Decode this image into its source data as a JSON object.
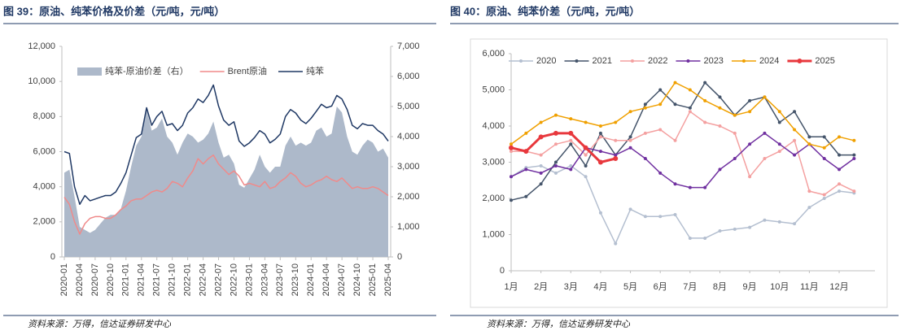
{
  "chart_data": [
    {
      "type": "combo",
      "title": "图 39：原油、纯苯价格及价差（元/吨，元/吨）",
      "categories": [
        "2020-01",
        null,
        null,
        "2020-04",
        null,
        null,
        "2020-07",
        null,
        null,
        "2020-10",
        null,
        null,
        "2021-01",
        null,
        null,
        "2021-04",
        null,
        null,
        "2021-07",
        null,
        null,
        "2021-10",
        null,
        null,
        "2022-01",
        null,
        null,
        "2022-04",
        null,
        null,
        "2022-07",
        null,
        null,
        "2022-10",
        null,
        null,
        "2023-01",
        null,
        null,
        "2023-04",
        null,
        null,
        "2023-07",
        null,
        null,
        "2023-10",
        null,
        null,
        "2024-01",
        null,
        null,
        "2024-04",
        null,
        null,
        "2024-07",
        null,
        null,
        "2024-10",
        null,
        null,
        "2025-01",
        null,
        null,
        "2025-04"
      ],
      "ylim": [
        0,
        12000
      ],
      "yticks": [
        0,
        {
          "value": 2000,
          "label": "2,000"
        },
        {
          "value": 4000,
          "label": "4,000"
        },
        {
          "value": 6000,
          "label": "6,000"
        },
        {
          "value": 8000,
          "label": "8,000"
        },
        {
          "value": 10000,
          "label": "10,000"
        },
        {
          "value": 12000,
          "label": "12,000"
        }
      ],
      "y2lim": [
        0,
        7000
      ],
      "y2ticks": [
        0,
        {
          "value": 1000,
          "label": "1,000"
        },
        {
          "value": 2000,
          "label": "2,000"
        },
        {
          "value": 3000,
          "label": "3,000"
        },
        {
          "value": 4000,
          "label": "4,000"
        },
        {
          "value": 5000,
          "label": "5,000"
        },
        {
          "value": 6000,
          "label": "6,000"
        },
        {
          "value": 7000,
          "label": "7,000"
        }
      ],
      "grid": false,
      "legend": "top",
      "series": [
        {
          "name": "纯苯-原油价差（右）",
          "type": "area",
          "axis": "y2",
          "color": "#adb9ca",
          "values": [
            2800,
            2900,
            2000,
            1000,
            900,
            800,
            900,
            1100,
            1300,
            1400,
            1400,
            1600,
            2200,
            3000,
            3700,
            4000,
            4900,
            4200,
            4300,
            4600,
            4000,
            3800,
            3400,
            3800,
            4100,
            4000,
            3800,
            3900,
            4100,
            4500,
            3800,
            3300,
            3400,
            3100,
            2400,
            2300,
            2600,
            2900,
            3400,
            3000,
            2800,
            3000,
            3000,
            3700,
            4000,
            3700,
            3800,
            3700,
            3800,
            4200,
            4300,
            4000,
            4100,
            5000,
            4800,
            4000,
            3500,
            3400,
            3700,
            3900,
            3800,
            3500,
            3600,
            3300
          ]
        },
        {
          "name": "Brent原油",
          "type": "line",
          "color": "#f08a8a",
          "values": [
            3400,
            3000,
            2000,
            1300,
            1900,
            2200,
            2300,
            2300,
            2200,
            2200,
            2400,
            2700,
            2900,
            3200,
            3300,
            3300,
            3500,
            3700,
            3800,
            3700,
            3900,
            4300,
            4200,
            4000,
            4500,
            4900,
            5600,
            5300,
            5600,
            5800,
            5300,
            5000,
            4700,
            4900,
            4600,
            4100,
            4200,
            4100,
            4000,
            4300,
            3900,
            4000,
            4300,
            4500,
            4800,
            4600,
            4200,
            4000,
            4100,
            4300,
            4400,
            4600,
            4400,
            4300,
            4500,
            4200,
            3900,
            4000,
            3900,
            3900,
            4000,
            3900,
            3700,
            3500
          ]
        },
        {
          "name": "纯苯",
          "type": "line",
          "color": "#1f3864",
          "values": [
            6000,
            5900,
            4000,
            3000,
            3500,
            3200,
            3300,
            3400,
            3500,
            3500,
            3700,
            4200,
            4800,
            5800,
            6800,
            7000,
            8500,
            7500,
            8000,
            8300,
            7500,
            7600,
            7200,
            7500,
            8200,
            8500,
            9000,
            8800,
            9200,
            9800,
            8600,
            7800,
            7500,
            7700,
            6600,
            6300,
            6500,
            6800,
            7200,
            7000,
            6500,
            6700,
            7000,
            8000,
            8400,
            8200,
            7800,
            7600,
            7900,
            8300,
            8700,
            8500,
            8600,
            9200,
            9000,
            8400,
            7500,
            7300,
            7600,
            7500,
            7500,
            7200,
            7000,
            6600
          ]
        }
      ]
    },
    {
      "type": "line",
      "title": "图 40：原油、纯苯价差（元/吨，元/吨）",
      "x": [
        1,
        1.5,
        2,
        2.5,
        3,
        3.5,
        4,
        4.5,
        5,
        5.5,
        6,
        6.5,
        7,
        7.5,
        8,
        8.5,
        9,
        9.5,
        10,
        10.5,
        11,
        11.5,
        12,
        12.5
      ],
      "xlim": [
        1,
        13.2
      ],
      "xticks": [
        {
          "value": 1,
          "label": "1月"
        },
        {
          "value": 2,
          "label": "2月"
        },
        {
          "value": 3,
          "label": "3月"
        },
        {
          "value": 4,
          "label": "4月"
        },
        {
          "value": 5,
          "label": "5月"
        },
        {
          "value": 6,
          "label": "6月"
        },
        {
          "value": 7,
          "label": "7月"
        },
        {
          "value": 8,
          "label": "8月"
        },
        {
          "value": 9,
          "label": "9月"
        },
        {
          "value": 10,
          "label": "10月"
        },
        {
          "value": 11,
          "label": "11月"
        },
        {
          "value": 12,
          "label": "12月"
        }
      ],
      "ylim": [
        0,
        6000
      ],
      "yticks": [
        0,
        {
          "value": 1000,
          "label": "1,000"
        },
        {
          "value": 2000,
          "label": "2,000"
        },
        {
          "value": 3000,
          "label": "3,000"
        },
        {
          "value": 4000,
          "label": "4,000"
        },
        {
          "value": 5000,
          "label": "5,000"
        },
        {
          "value": 6000,
          "label": "6,000"
        }
      ],
      "grid": false,
      "legend": "top",
      "markers": true,
      "series": [
        {
          "name": "2020",
          "color": "#b4bfd0",
          "values": [
            2600,
            2850,
            2900,
            2700,
            2900,
            2600,
            1600,
            750,
            1700,
            1500,
            1500,
            1550,
            900,
            900,
            1100,
            1150,
            1200,
            1400,
            1350,
            1300,
            1750,
            2000,
            2200,
            2150
          ]
        },
        {
          "name": "2021",
          "color": "#44546a",
          "values": [
            1950,
            2050,
            2400,
            3000,
            3500,
            2900,
            3800,
            3200,
            3700,
            4600,
            5000,
            4600,
            4500,
            5200,
            4800,
            4300,
            4700,
            4800,
            4100,
            4400,
            3700,
            3700,
            3200,
            3200
          ]
        },
        {
          "name": "2022",
          "color": "#f4a0a0",
          "values": [
            3300,
            3300,
            3200,
            3500,
            3600,
            3200,
            3700,
            3600,
            3600,
            3800,
            3900,
            3600,
            4400,
            4100,
            4000,
            3800,
            2600,
            3100,
            3300,
            3600,
            2200,
            2100,
            2400,
            2200
          ]
        },
        {
          "name": "2023",
          "color": "#7030a0",
          "values": [
            2600,
            2800,
            2700,
            2900,
            2800,
            3400,
            3300,
            3200,
            3400,
            3100,
            2700,
            2400,
            2300,
            2300,
            2800,
            3100,
            3500,
            3800,
            3500,
            3200,
            3500,
            3100,
            2800,
            3100
          ]
        },
        {
          "name": "2024",
          "color": "#f0a000",
          "values": [
            3500,
            3800,
            4100,
            4300,
            4200,
            4100,
            4000,
            4100,
            4400,
            4500,
            4600,
            5200,
            5000,
            4700,
            4500,
            4300,
            4400,
            4800,
            4400,
            3900,
            3500,
            3400,
            3700,
            3600
          ]
        },
        {
          "name": "2025",
          "color": "#e8383d",
          "line_width": 3,
          "values": [
            3400,
            3300,
            3700,
            3800,
            3800,
            3400,
            3000,
            3100,
            null,
            null,
            null,
            null,
            null,
            null,
            null,
            null,
            null,
            null,
            null,
            null,
            null,
            null,
            null,
            null
          ]
        }
      ]
    }
  ],
  "sources": [
    "资料来源：万得，信达证券研发中心",
    "资料来源：万得，信达证券研发中心"
  ]
}
